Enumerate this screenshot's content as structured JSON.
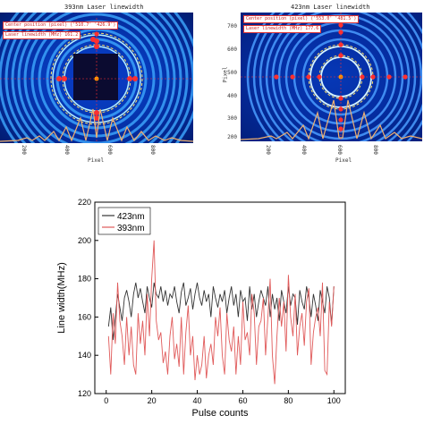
{
  "panels": [
    {
      "title": "393nm   Laser linewidth",
      "center_label": "Center position (pixel)",
      "center_value": "('510.7'   '426.9')",
      "width_label": "Laser linewidth (MHz)",
      "width_value": "161.2",
      "xlabel": "Pixel",
      "xticks": [
        "200",
        "400",
        "600",
        "800"
      ]
    },
    {
      "title": "423nm   Laser linewidth",
      "center_label": "Center position (pixel)",
      "center_value": "('553.0'   '481.5')",
      "width_label": "Laser linewidth (MHz)",
      "width_value": "177.6",
      "xlabel": "Pixel",
      "ylabel": "Pixel",
      "xticks": [
        "200",
        "400",
        "600",
        "800"
      ],
      "yticks": [
        "700",
        "600",
        "500",
        "400",
        "300",
        "200"
      ]
    }
  ],
  "colors": {
    "series_423": "#333333",
    "series_393": "#e05a5a",
    "fringe_ring": "#4fd0ff",
    "marker": "#ff3030",
    "profile": "#f0b070"
  },
  "chart_data": {
    "type": "line",
    "xlabel": "Pulse counts",
    "ylabel": "Line width(MHz)",
    "xlim": [
      -5,
      105
    ],
    "ylim": [
      120,
      220
    ],
    "xticks": [
      0,
      20,
      40,
      60,
      80,
      100
    ],
    "yticks": [
      120,
      140,
      160,
      180,
      200,
      220
    ],
    "legend_position": "top-left",
    "series": [
      {
        "name": "423nm",
        "x": [
          1,
          2,
          3,
          4,
          5,
          6,
          7,
          8,
          9,
          10,
          11,
          12,
          13,
          14,
          15,
          16,
          17,
          18,
          19,
          20,
          21,
          22,
          23,
          24,
          25,
          26,
          27,
          28,
          29,
          30,
          31,
          32,
          33,
          34,
          35,
          36,
          37,
          38,
          39,
          40,
          41,
          42,
          43,
          44,
          45,
          46,
          47,
          48,
          49,
          50,
          51,
          52,
          53,
          54,
          55,
          56,
          57,
          58,
          59,
          60,
          61,
          62,
          63,
          64,
          65,
          66,
          67,
          68,
          69,
          70,
          71,
          72,
          73,
          74,
          75,
          76,
          77,
          78,
          79,
          80,
          81,
          82,
          83,
          84,
          85,
          86,
          87,
          88,
          89,
          90,
          91,
          92,
          93,
          94,
          95,
          96,
          97,
          98,
          99,
          100
        ],
        "values": [
          155,
          165,
          148,
          160,
          172,
          165,
          158,
          170,
          174,
          168,
          160,
          172,
          178,
          170,
          175,
          168,
          162,
          176,
          170,
          165,
          178,
          172,
          170,
          176,
          168,
          174,
          166,
          172,
          170,
          176,
          168,
          162,
          173,
          178,
          166,
          170,
          175,
          164,
          172,
          178,
          170,
          166,
          174,
          168,
          172,
          160,
          176,
          170,
          165,
          172,
          168,
          174,
          162,
          170,
          176,
          166,
          172,
          160,
          174,
          168,
          170,
          158,
          176,
          164,
          172,
          160,
          168,
          174,
          170,
          166,
          176,
          160,
          172,
          164,
          170,
          158,
          174,
          168,
          162,
          176,
          166,
          172,
          170,
          156,
          174,
          168,
          164,
          176,
          170,
          160,
          172,
          166,
          158,
          174,
          168,
          162,
          176,
          170,
          156,
          176
        ]
      },
      {
        "name": "393nm",
        "x": [
          1,
          2,
          3,
          4,
          5,
          6,
          7,
          8,
          9,
          10,
          11,
          12,
          13,
          14,
          15,
          16,
          17,
          18,
          19,
          20,
          21,
          22,
          23,
          24,
          25,
          26,
          27,
          28,
          29,
          30,
          31,
          32,
          33,
          34,
          35,
          36,
          37,
          38,
          39,
          40,
          41,
          42,
          43,
          44,
          45,
          46,
          47,
          48,
          49,
          50,
          51,
          52,
          53,
          54,
          55,
          56,
          57,
          58,
          59,
          60,
          61,
          62,
          63,
          64,
          65,
          66,
          67,
          68,
          69,
          70,
          71,
          72,
          73,
          74,
          75,
          76,
          77,
          78,
          79,
          80,
          81,
          82,
          83,
          84,
          85,
          86,
          87,
          88,
          89,
          90,
          91,
          92,
          93,
          94,
          95,
          96,
          97,
          98,
          99,
          100
        ],
        "values": [
          150,
          130,
          162,
          146,
          178,
          158,
          150,
          135,
          160,
          140,
          155,
          135,
          130,
          162,
          146,
          158,
          140,
          172,
          150,
          180,
          200,
          158,
          148,
          152,
          136,
          142,
          130,
          150,
          160,
          138,
          146,
          134,
          160,
          130,
          152,
          166,
          140,
          150,
          127,
          140,
          130,
          135,
          150,
          128,
          140,
          146,
          135,
          160,
          150,
          165,
          140,
          130,
          162,
          148,
          142,
          155,
          130,
          150,
          135,
          168,
          148,
          152,
          140,
          172,
          162,
          135,
          155,
          158,
          170,
          140,
          160,
          180,
          140,
          125,
          150,
          170,
          155,
          168,
          142,
          182,
          160,
          150,
          172,
          140,
          155,
          162,
          145,
          168,
          175,
          135,
          152,
          160,
          165,
          150,
          178,
          132,
          130,
          168,
          155,
          176
        ]
      }
    ]
  }
}
